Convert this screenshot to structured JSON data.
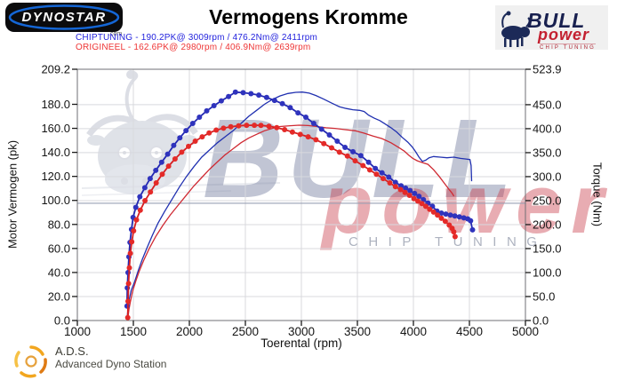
{
  "header": {
    "title": "Vermogens Kromme",
    "dynostar": {
      "brand": "DYNOSTAR",
      "suffix": ".com"
    },
    "bullpower": {
      "brand": "BULL",
      "power": "power",
      "tagline": "CHIP TUNING"
    }
  },
  "legend": [
    {
      "label": "CHIPTUNING  - 190.2PK@ 3009rpm / 476.2Nm@ 2411rpm",
      "color": "#2222dd"
    },
    {
      "label": "ORIGINEEL  - 162.6PK@ 2980rpm / 406.9Nm@ 2639rpm",
      "color": "#ee3535"
    }
  ],
  "footer": {
    "ads_abbr": "A.D.S.",
    "ads_name": "Advanced Dyno Station"
  },
  "watermark": {
    "brand": "BULL",
    "power": "power",
    "tagline": "CHIP TUNING"
  },
  "chart_data": {
    "type": "line",
    "title": "Vermogens Kromme",
    "xlabel": "Toerental (rpm)",
    "ylabel_left": "Motor Vermogen (pk)",
    "ylabel_right": "Torque (Nm)",
    "x_range": [
      1000,
      5000
    ],
    "y_left_range": [
      0,
      209.2
    ],
    "y_right_range": [
      0,
      523.9
    ],
    "grid": true,
    "legend_position": "top-left",
    "x_ticks": [
      "1000",
      "1500",
      "2000",
      "2500",
      "3000",
      "3500",
      "4000",
      "4500",
      "5000"
    ],
    "y_left_ticks": [
      "0.0",
      "20.0",
      "40.0",
      "60.0",
      "80.0",
      "100.0",
      "120.0",
      "140.0",
      "160.0",
      "180.0",
      "209.2"
    ],
    "y_right_ticks": [
      "0.0",
      "50.0",
      "100.0",
      "150.0",
      "200.0",
      "250.0",
      "300.0",
      "350.0",
      "400.0",
      "450.0",
      "523.9"
    ],
    "series": [
      {
        "name": "chiptuning_power_pk",
        "axis": "left",
        "color": "#2030b0",
        "markers": false,
        "peak": "190.2PK@3009rpm",
        "points": [
          [
            1445,
            3
          ],
          [
            1452,
            10
          ],
          [
            1462,
            17
          ],
          [
            1480,
            25
          ],
          [
            1510,
            32
          ],
          [
            1545,
            42
          ],
          [
            1580,
            51
          ],
          [
            1620,
            60
          ],
          [
            1670,
            71
          ],
          [
            1720,
            81
          ],
          [
            1780,
            91
          ],
          [
            1845,
            101
          ],
          [
            1910,
            111
          ],
          [
            1975,
            120
          ],
          [
            2040,
            128
          ],
          [
            2110,
            136
          ],
          [
            2180,
            142
          ],
          [
            2250,
            148
          ],
          [
            2320,
            153
          ],
          [
            2390,
            158
          ],
          [
            2460,
            164
          ],
          [
            2530,
            170
          ],
          [
            2600,
            175
          ],
          [
            2670,
            180
          ],
          [
            2740,
            184
          ],
          [
            2810,
            187
          ],
          [
            2880,
            189
          ],
          [
            2950,
            190
          ],
          [
            3009,
            190.2
          ],
          [
            3070,
            189.3
          ],
          [
            3130,
            187.3
          ],
          [
            3200,
            184.3
          ],
          [
            3270,
            181
          ],
          [
            3340,
            178
          ],
          [
            3400,
            176.5
          ],
          [
            3460,
            175.5
          ],
          [
            3520,
            175
          ],
          [
            3560,
            174
          ],
          [
            3600,
            171
          ],
          [
            3650,
            168.5
          ],
          [
            3700,
            166.5
          ],
          [
            3750,
            163.5
          ],
          [
            3800,
            160.5
          ],
          [
            3850,
            157
          ],
          [
            3900,
            152.5
          ],
          [
            3950,
            148.5
          ],
          [
            3990,
            144.5
          ],
          [
            4020,
            140.5
          ],
          [
            4050,
            136
          ],
          [
            4080,
            132.5
          ],
          [
            4110,
            133.5
          ],
          [
            4140,
            135.5
          ],
          [
            4180,
            136.5
          ],
          [
            4240,
            136
          ],
          [
            4300,
            135.5
          ],
          [
            4360,
            136
          ],
          [
            4420,
            135
          ],
          [
            4470,
            134.5
          ],
          [
            4505,
            134
          ],
          [
            4515,
            129
          ],
          [
            4520,
            116
          ]
        ]
      },
      {
        "name": "chiptuning_torque_nm",
        "axis": "right",
        "color": "#2328b2",
        "marker_color": "#2f33bd",
        "markers": true,
        "peak": "476.2Nm@2411rpm",
        "points": [
          [
            1444,
            30
          ],
          [
            1446,
            68
          ],
          [
            1452,
            100
          ],
          [
            1460,
            133
          ],
          [
            1470,
            163
          ],
          [
            1483,
            190
          ],
          [
            1498,
            215
          ],
          [
            1522,
            236
          ],
          [
            1558,
            258
          ],
          [
            1602,
            277
          ],
          [
            1650,
            296
          ],
          [
            1700,
            313
          ],
          [
            1752,
            330
          ],
          [
            1806,
            347
          ],
          [
            1860,
            365
          ],
          [
            1915,
            381
          ],
          [
            1970,
            396
          ],
          [
            2030,
            411
          ],
          [
            2090,
            424
          ],
          [
            2155,
            437
          ],
          [
            2220,
            448
          ],
          [
            2285,
            458
          ],
          [
            2350,
            467
          ],
          [
            2411,
            476.2
          ],
          [
            2480,
            475
          ],
          [
            2550,
            473
          ],
          [
            2620,
            470
          ],
          [
            2690,
            465
          ],
          [
            2760,
            459
          ],
          [
            2830,
            452
          ],
          [
            2900,
            444
          ],
          [
            2970,
            433
          ],
          [
            3040,
            424
          ],
          [
            3110,
            411
          ],
          [
            3180,
            399
          ],
          [
            3250,
            387
          ],
          [
            3320,
            374
          ],
          [
            3390,
            361
          ],
          [
            3460,
            352
          ],
          [
            3530,
            344
          ],
          [
            3600,
            330
          ],
          [
            3660,
            317
          ],
          [
            3720,
            308
          ],
          [
            3780,
            299
          ],
          [
            3840,
            288
          ],
          [
            3890,
            281
          ],
          [
            3930,
            276
          ],
          [
            3970,
            271
          ],
          [
            4010,
            265
          ],
          [
            4050,
            259
          ],
          [
            4090,
            252
          ],
          [
            4130,
            245
          ],
          [
            4170,
            238
          ],
          [
            4210,
            228
          ],
          [
            4250,
            224
          ],
          [
            4290,
            222
          ],
          [
            4330,
            220
          ],
          [
            4370,
            218
          ],
          [
            4410,
            216
          ],
          [
            4450,
            214
          ],
          [
            4485,
            212
          ],
          [
            4510,
            208
          ],
          [
            4528,
            189
          ]
        ]
      },
      {
        "name": "origineel_power_pk",
        "axis": "left",
        "color": "#cf2a33",
        "markers": false,
        "peak": "162.6PK@2980rpm",
        "points": [
          [
            1452,
            3
          ],
          [
            1460,
            9
          ],
          [
            1472,
            15
          ],
          [
            1492,
            24
          ],
          [
            1522,
            33
          ],
          [
            1552,
            41
          ],
          [
            1592,
            50
          ],
          [
            1642,
            60
          ],
          [
            1700,
            70
          ],
          [
            1762,
            79
          ],
          [
            1830,
            88
          ],
          [
            1900,
            96
          ],
          [
            1970,
            104
          ],
          [
            2040,
            112
          ],
          [
            2110,
            119
          ],
          [
            2180,
            126
          ],
          [
            2250,
            132
          ],
          [
            2320,
            138
          ],
          [
            2390,
            143
          ],
          [
            2460,
            148
          ],
          [
            2530,
            152
          ],
          [
            2600,
            155
          ],
          [
            2670,
            158
          ],
          [
            2740,
            160
          ],
          [
            2810,
            161.5
          ],
          [
            2900,
            162.2
          ],
          [
            2980,
            162.6
          ],
          [
            3060,
            162.3
          ],
          [
            3140,
            161.5
          ],
          [
            3220,
            160.5
          ],
          [
            3300,
            160
          ],
          [
            3380,
            159
          ],
          [
            3480,
            158
          ],
          [
            3560,
            156
          ],
          [
            3640,
            153.5
          ],
          [
            3720,
            151.5
          ],
          [
            3800,
            148
          ],
          [
            3870,
            144
          ],
          [
            3920,
            141
          ],
          [
            3960,
            137.5
          ],
          [
            3995,
            135
          ],
          [
            4035,
            133
          ],
          [
            4080,
            131.5
          ],
          [
            4130,
            130
          ],
          [
            4180,
            125.5
          ],
          [
            4230,
            120
          ],
          [
            4275,
            114.5
          ],
          [
            4315,
            109.5
          ],
          [
            4345,
            106
          ],
          [
            4362,
            103.5
          ]
        ]
      },
      {
        "name": "origineel_torque_nm",
        "axis": "right",
        "color": "#d51f22",
        "marker_color": "#e42a28",
        "markers": true,
        "peak": "406.9Nm@2639rpm",
        "points": [
          [
            1450,
            6
          ],
          [
            1452,
            40
          ],
          [
            1457,
            77
          ],
          [
            1464,
            110
          ],
          [
            1473,
            140
          ],
          [
            1486,
            164
          ],
          [
            1502,
            187
          ],
          [
            1528,
            210
          ],
          [
            1562,
            230
          ],
          [
            1604,
            250
          ],
          [
            1652,
            268
          ],
          [
            1704,
            287
          ],
          [
            1758,
            305
          ],
          [
            1814,
            322
          ],
          [
            1872,
            337
          ],
          [
            1932,
            351
          ],
          [
            1992,
            363
          ],
          [
            2052,
            374
          ],
          [
            2114,
            383
          ],
          [
            2176,
            391
          ],
          [
            2240,
            397
          ],
          [
            2305,
            401
          ],
          [
            2370,
            404
          ],
          [
            2440,
            406
          ],
          [
            2510,
            407
          ],
          [
            2580,
            407
          ],
          [
            2639,
            406.9
          ],
          [
            2710,
            405
          ],
          [
            2780,
            402
          ],
          [
            2850,
            398
          ],
          [
            2920,
            393
          ],
          [
            2990,
            388
          ],
          [
            3060,
            383
          ],
          [
            3130,
            377
          ],
          [
            3200,
            369
          ],
          [
            3270,
            360
          ],
          [
            3340,
            351
          ],
          [
            3410,
            343
          ],
          [
            3480,
            333
          ],
          [
            3550,
            323
          ],
          [
            3610,
            314
          ],
          [
            3670,
            305
          ],
          [
            3730,
            296
          ],
          [
            3790,
            287
          ],
          [
            3840,
            279
          ],
          [
            3885,
            273
          ],
          [
            3925,
            267
          ],
          [
            3965,
            261
          ],
          [
            4005,
            254
          ],
          [
            4040,
            249
          ],
          [
            4075,
            244
          ],
          [
            4110,
            238
          ],
          [
            4145,
            232
          ],
          [
            4180,
            226
          ],
          [
            4215,
            220
          ],
          [
            4250,
            213
          ],
          [
            4285,
            207
          ],
          [
            4320,
            199
          ],
          [
            4345,
            192
          ],
          [
            4360,
            185
          ],
          [
            4372,
            175
          ]
        ]
      }
    ]
  }
}
